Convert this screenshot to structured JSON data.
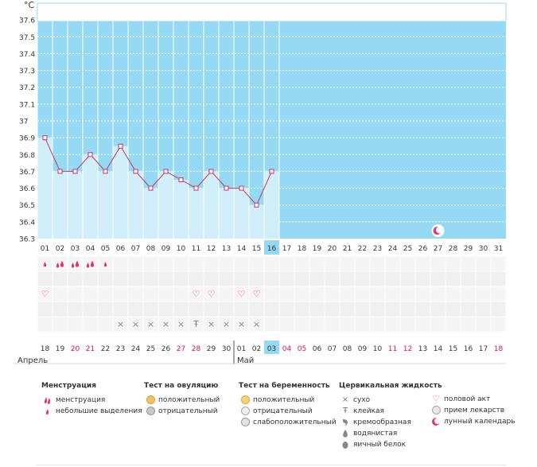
{
  "chart_data": {
    "type": "line",
    "ylabel": "°C",
    "ylim": [
      36.3,
      37.7
    ],
    "y_ticks": [
      "37.6",
      "37.5",
      "37.4",
      "37.3",
      "37.2",
      "37.1",
      "37",
      "36.9",
      "36.8",
      "36.7",
      "36.6",
      "36.5",
      "36.4",
      "36.3"
    ],
    "cycle_days": [
      "01",
      "02",
      "03",
      "04",
      "05",
      "06",
      "07",
      "08",
      "09",
      "10",
      "11",
      "12",
      "13",
      "14",
      "15",
      "16",
      "17",
      "18",
      "19",
      "20",
      "21",
      "22",
      "23",
      "24",
      "25",
      "26",
      "27",
      "28",
      "29",
      "30",
      "31"
    ],
    "temperatures": [
      36.9,
      36.7,
      36.7,
      36.8,
      36.7,
      36.85,
      36.7,
      36.6,
      36.7,
      36.65,
      36.6,
      36.7,
      36.6,
      36.6,
      36.5,
      36.7
    ],
    "current_day_index": 15,
    "moon_day_index": 26,
    "calendar_dates": [
      "18",
      "19",
      "20",
      "21",
      "22",
      "23",
      "24",
      "25",
      "26",
      "27",
      "28",
      "29",
      "30",
      "01",
      "02",
      "03",
      "04",
      "05",
      "06",
      "07",
      "08",
      "09",
      "10",
      "11",
      "12",
      "13",
      "14",
      "15",
      "16",
      "17",
      "18"
    ],
    "red_date_indices": [
      2,
      3,
      9,
      10,
      16,
      17,
      23,
      24,
      30
    ],
    "month_labels": [
      "Апрель",
      "Май"
    ],
    "may_start_index": 13,
    "menstruation": [
      {
        "day": 0,
        "kind": "small"
      },
      {
        "day": 1,
        "kind": "heavy"
      },
      {
        "day": 2,
        "kind": "heavy"
      },
      {
        "day": 3,
        "kind": "heavy"
      },
      {
        "day": 4,
        "kind": "small"
      }
    ],
    "intercourse_days": [
      0,
      10,
      11,
      13,
      14
    ],
    "fluid": [
      {
        "day": 5,
        "kind": "dry"
      },
      {
        "day": 6,
        "kind": "dry"
      },
      {
        "day": 7,
        "kind": "dry"
      },
      {
        "day": 8,
        "kind": "dry"
      },
      {
        "day": 9,
        "kind": "dry"
      },
      {
        "day": 10,
        "kind": "sticky"
      },
      {
        "day": 11,
        "kind": "dry"
      },
      {
        "day": 12,
        "kind": "dry"
      },
      {
        "day": 13,
        "kind": "dry"
      },
      {
        "day": 14,
        "kind": "dry"
      }
    ],
    "colors": {
      "background": "#95d9f2",
      "past_bars": "#d1eefb",
      "line": "#c8346a",
      "current_day": "#95d9f2",
      "red_date": "#d6134f",
      "icon_pink": "#e8336e"
    }
  },
  "legend": {
    "menstruation": {
      "title": "Менструация",
      "items": [
        "менструация",
        "небольшие выделения"
      ]
    },
    "ovulation": {
      "title": "Тест на овуляцию",
      "items": [
        "положительный",
        "отрицательный"
      ]
    },
    "pregnancy": {
      "title": "Тест на беременность",
      "items": [
        "положительный",
        "отрицательный",
        "слабоположительный"
      ]
    },
    "fluid": {
      "title": "Цервикальная жидкость",
      "items": [
        "сухо",
        "клейкая",
        "кремообразная",
        "водянистая",
        "яичный белок"
      ]
    },
    "other": {
      "items": [
        "половой акт",
        "прием лекарств",
        "лунный календарь"
      ]
    }
  }
}
